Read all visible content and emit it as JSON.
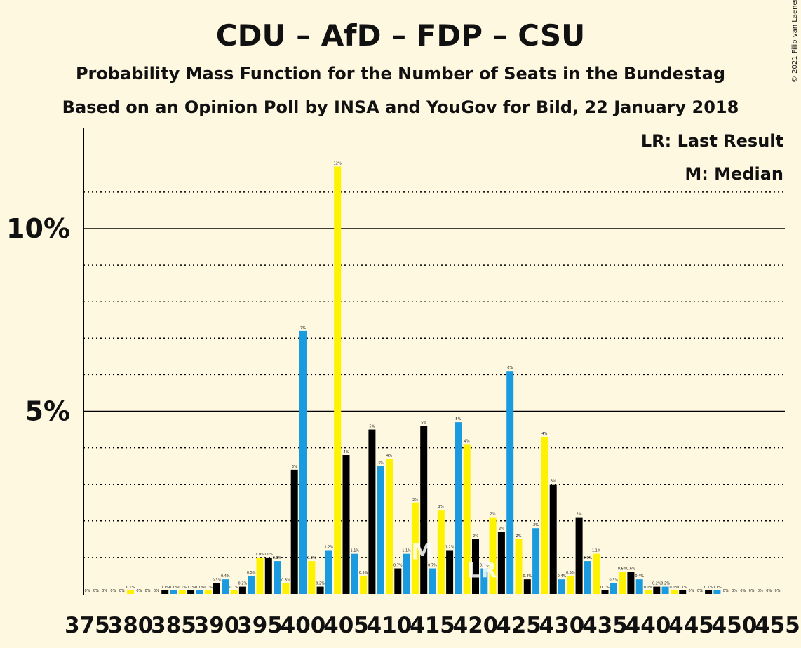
{
  "title": "CDU – AfD – FDP – CSU",
  "subtitle": "Probability Mass Function for the Number of Seats in the Bundestag",
  "subtitle2": "Based on an Opinion Poll by INSA and YouGov for Bild, 22 January 2018",
  "copyright": "© 2021 Filip van Laenen",
  "legend": {
    "lr": "LR: Last Result",
    "median": "M: Median"
  },
  "colors": {
    "background": "#fff8e1",
    "black": "#000000",
    "blue": "#1a9be0",
    "yellow": "#fff200"
  },
  "chart_data": {
    "type": "bar",
    "x_start": 375,
    "x_end": 455,
    "ylim": [
      0,
      12.5
    ],
    "y_ticks": [
      {
        "value": 5,
        "label": "5%"
      },
      {
        "value": 10,
        "label": "10%"
      }
    ],
    "x_tick_labels": [
      "375",
      "380",
      "385",
      "390",
      "395",
      "400",
      "405",
      "410",
      "415",
      "420",
      "425",
      "430",
      "435",
      "440",
      "445",
      "450",
      "455"
    ],
    "median_seat": 414,
    "last_result_seat": 421,
    "median_marker": "M",
    "last_result_marker": "LR",
    "color_cycle": [
      "black",
      "blue",
      "yellow"
    ],
    "values": [
      0,
      0,
      0,
      0,
      0,
      0.1,
      0,
      0,
      0,
      0.1,
      0.1,
      0.1,
      0.1,
      0.1,
      0.1,
      0.3,
      0.4,
      0.1,
      0.2,
      0.5,
      1.0,
      1.0,
      0.9,
      0.3,
      3.4,
      7.2,
      0.9,
      0.2,
      1.2,
      11.7,
      3.8,
      1.1,
      0.5,
      4.5,
      3.5,
      3.7,
      0.7,
      1.1,
      2.5,
      4.6,
      0.7,
      2.3,
      1.2,
      4.7,
      4.1,
      1.5,
      0.7,
      2.1,
      1.7,
      6.1,
      1.5,
      0.4,
      1.8,
      4.3,
      3.0,
      0.4,
      0.5,
      2.1,
      0.9,
      1.1,
      0.1,
      0.3,
      0.6,
      0.6,
      0.4,
      0.1,
      0.2,
      0.2,
      0.1,
      0.1,
      0,
      0,
      0.1,
      0.1,
      0,
      0,
      0,
      0,
      0,
      0,
      0
    ],
    "labels": [
      "0%",
      "0%",
      "0%",
      "0%",
      "0%",
      "0.1%",
      "0%",
      "0%",
      "0%",
      "0.1%",
      "0.1%",
      "0.1%",
      "0.1%",
      "0.1%",
      "0.1%",
      "0.3%",
      "0.4%",
      "0.1%",
      "0.2%",
      "0.5%",
      "1.0%",
      "1.0%",
      "0.9%",
      "0.3%",
      "3%",
      "7%",
      "0.9%",
      "0.2%",
      "1.2%",
      "12%",
      "4%",
      "1.1%",
      "0.5%",
      "5%",
      "3%",
      "4%",
      "0.7%",
      "1.1%",
      "3%",
      "5%",
      "0.7%",
      "2%",
      "1.2%",
      "5%",
      "4%",
      "2%",
      "0.7%",
      "2%",
      "2%",
      "6%",
      "2%",
      "0.4%",
      "2%",
      "4%",
      "3%",
      "0.4%",
      "0.5%",
      "2%",
      "0.9%",
      "1.1%",
      "0.1%",
      "0.3%",
      "0.6%",
      "0.6%",
      "0.4%",
      "0.1%",
      "0.2%",
      "0.2%",
      "0.1%",
      "0.1%",
      "0%",
      "0%",
      "0.1%",
      "0.1%",
      "0%",
      "0%",
      "0%",
      "0%",
      "0%",
      "0%",
      "0%"
    ]
  }
}
